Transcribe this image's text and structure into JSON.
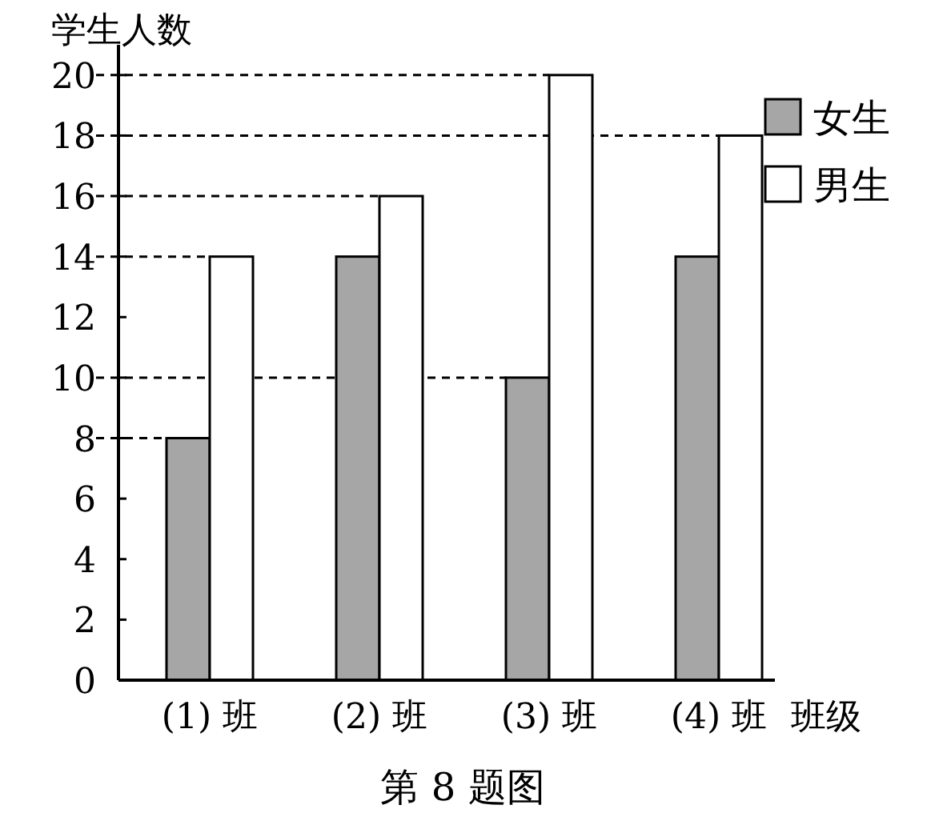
{
  "chart_data": {
    "type": "bar",
    "title": "第 8 题图",
    "xlabel": "班级",
    "ylabel": "学生人数",
    "categories": [
      "(1) 班",
      "(2) 班",
      "(3) 班",
      "(4) 班"
    ],
    "series": [
      {
        "name": "女生",
        "color": "#a6a6a6",
        "values": [
          8,
          14,
          10,
          14
        ]
      },
      {
        "name": "男生",
        "color": "#ffffff",
        "values": [
          14,
          16,
          20,
          18
        ]
      }
    ],
    "ylim": [
      0,
      21
    ],
    "yticks": [
      0,
      2,
      4,
      6,
      8,
      10,
      12,
      14,
      16,
      18,
      20
    ],
    "ref_lines": [
      {
        "axis": "y",
        "value": 8,
        "line_style": "dashed"
      },
      {
        "axis": "y",
        "value": 10,
        "line_style": "dashed"
      },
      {
        "axis": "y",
        "value": 14,
        "line_style": "dashed"
      },
      {
        "axis": "y",
        "value": 16,
        "line_style": "dashed"
      },
      {
        "axis": "y",
        "value": 18,
        "line_style": "dashed"
      },
      {
        "axis": "y",
        "value": 20,
        "line_style": "dashed"
      }
    ],
    "legend": "top right",
    "grid": false
  }
}
